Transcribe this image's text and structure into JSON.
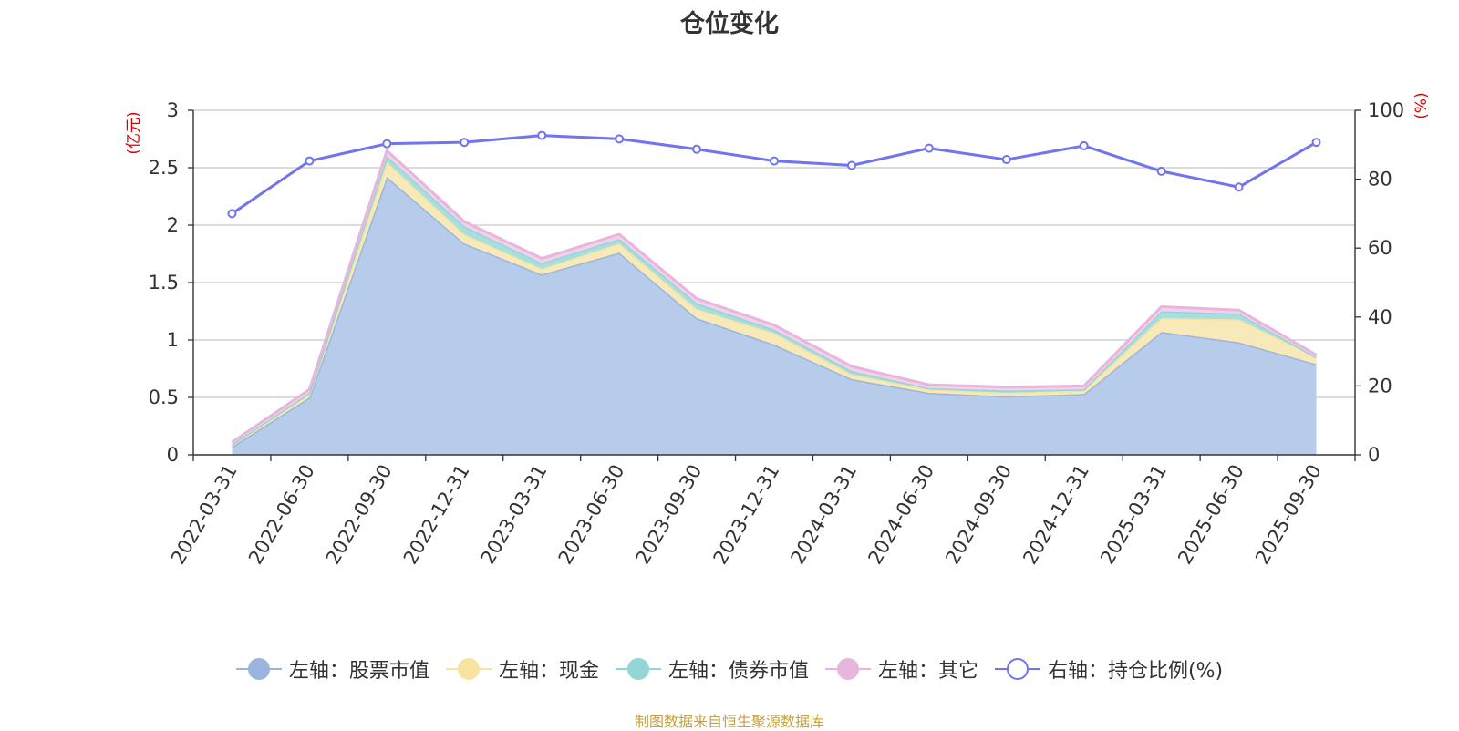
{
  "title": "仓位变化",
  "source": "制图数据来自恒生聚源数据库",
  "chart_data": {
    "type": "area",
    "categories": [
      "2022-03-31",
      "2022-06-30",
      "2022-09-30",
      "2022-12-31",
      "2023-03-31",
      "2023-06-30",
      "2023-09-30",
      "2023-12-31",
      "2024-03-31",
      "2024-06-30",
      "2024-09-30",
      "2024-12-31",
      "2025-03-31",
      "2025-06-30",
      "2025-09-30"
    ],
    "left_axis": {
      "label": "(亿元)",
      "ylim": [
        0,
        3
      ],
      "ticks": [
        "0",
        "0.5",
        "1",
        "1.5",
        "2",
        "2.5",
        "3"
      ]
    },
    "right_axis": {
      "label": "(%)",
      "ylim": [
        0,
        100
      ],
      "ticks": [
        "0",
        "20",
        "40",
        "60",
        "80",
        "100"
      ]
    },
    "grid": true,
    "legend_position": "bottom",
    "series": [
      {
        "name": "左轴：股票市值",
        "axis": "left",
        "stacked": true,
        "color": "#9cb5e0",
        "fill": "#b7cbea",
        "values": [
          0.07,
          0.5,
          2.42,
          1.84,
          1.57,
          1.76,
          1.19,
          0.96,
          0.66,
          0.54,
          0.51,
          0.53,
          1.07,
          0.98,
          0.79
        ]
      },
      {
        "name": "左轴：现金",
        "axis": "left",
        "stacked": true,
        "color": "#f8e3a0",
        "fill": "#f8e9b8",
        "values": [
          0.02,
          0.03,
          0.13,
          0.08,
          0.05,
          0.08,
          0.08,
          0.1,
          0.04,
          0.03,
          0.03,
          0.03,
          0.12,
          0.2,
          0.06
        ]
      },
      {
        "name": "左轴：债券市值",
        "axis": "left",
        "stacked": true,
        "color": "#92d6d6",
        "fill": "#a7dfe0",
        "values": [
          0.0,
          0.01,
          0.05,
          0.07,
          0.05,
          0.04,
          0.05,
          0.03,
          0.03,
          0.01,
          0.02,
          0.01,
          0.06,
          0.05,
          0.0
        ]
      },
      {
        "name": "左轴：其它",
        "axis": "left",
        "stacked": true,
        "color": "#e8b6dc",
        "fill": "#f2d2ea",
        "values": [
          0.02,
          0.03,
          0.05,
          0.04,
          0.04,
          0.04,
          0.04,
          0.04,
          0.04,
          0.03,
          0.03,
          0.03,
          0.04,
          0.03,
          0.02
        ]
      },
      {
        "name": "右轴：持仓比例(%)",
        "axis": "right",
        "type": "line",
        "color": "#7074ee",
        "values": [
          70,
          85.3,
          90.3,
          90.7,
          92.7,
          91.7,
          88.7,
          85.3,
          84,
          89,
          85.7,
          89.7,
          82.3,
          77.7,
          90.7
        ]
      }
    ]
  }
}
